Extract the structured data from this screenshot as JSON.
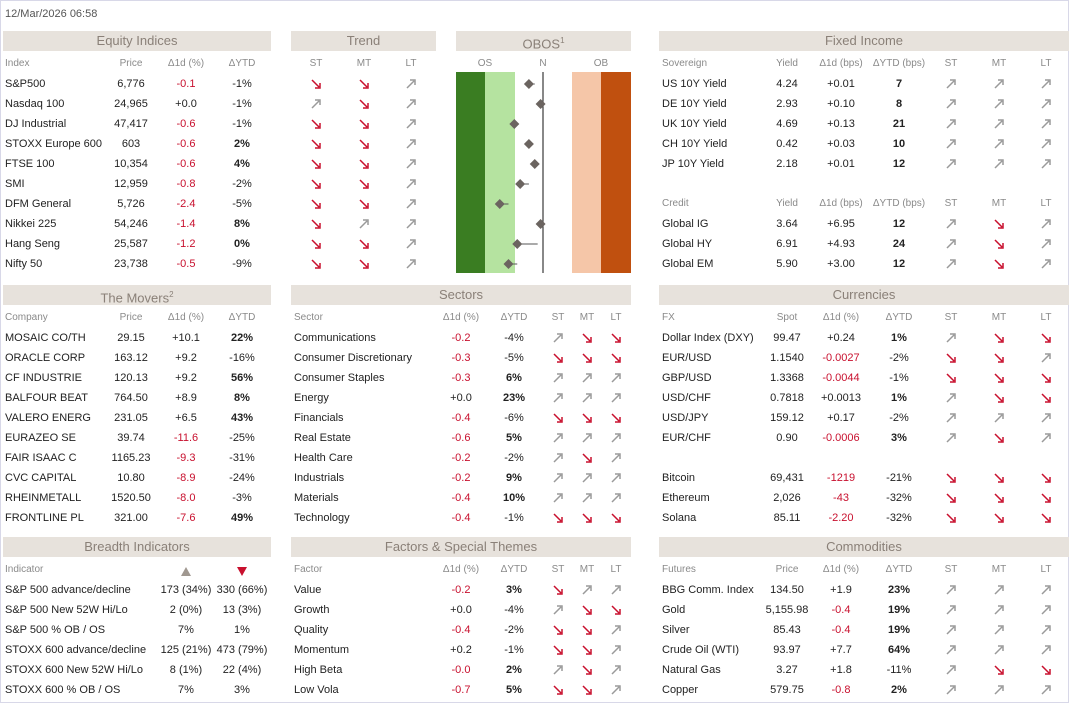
{
  "timestamp": "12/Mar/2026 06:58",
  "equity": {
    "title": "Equity Indices",
    "columns": [
      "Index",
      "Price",
      "Δ1d (%)",
      "ΔYTD"
    ],
    "rows": [
      [
        "S&P500",
        "6,776",
        "-0.1",
        "-1%"
      ],
      [
        "Nasdaq 100",
        "24,965",
        "+0.0",
        "-1%"
      ],
      [
        "DJ Industrial",
        "47,417",
        "-0.6",
        "-1%"
      ],
      [
        "STOXX Europe 600",
        "603",
        "-0.6",
        "2%"
      ],
      [
        "FTSE 100",
        "10,354",
        "-0.6",
        "4%"
      ],
      [
        "SMI",
        "12,959",
        "-0.8",
        "-2%"
      ],
      [
        "DFM General",
        "5,726",
        "-2.4",
        "-5%"
      ],
      [
        "Nikkei 225",
        "54,246",
        "-1.4",
        "8%"
      ],
      [
        "Hang Seng",
        "25,587",
        "-1.2",
        "0%"
      ],
      [
        "Nifty 50",
        "23,738",
        "-0.5",
        "-9%"
      ]
    ]
  },
  "trend": {
    "title": "Trend",
    "columns": [
      "ST",
      "MT",
      "LT"
    ],
    "trends": [
      [
        "down",
        "down",
        "up"
      ],
      [
        "up",
        "down",
        "up"
      ],
      [
        "down",
        "down",
        "up"
      ],
      [
        "down",
        "down",
        "up"
      ],
      [
        "down",
        "down",
        "up"
      ],
      [
        "down",
        "down",
        "up"
      ],
      [
        "down",
        "down",
        "up"
      ],
      [
        "down",
        "up",
        "up"
      ],
      [
        "down",
        "down",
        "up"
      ],
      [
        "down",
        "down",
        "up"
      ]
    ]
  },
  "obos": {
    "title": "OBOS",
    "note": "1",
    "labels": [
      "OS",
      "N",
      "OB"
    ],
    "xlim": [
      -3,
      3
    ],
    "values": [
      -0.5,
      -0.1,
      -1.0,
      -0.5,
      -0.3,
      -0.8,
      -1.5,
      -0.1,
      -0.9,
      -1.2
    ],
    "previous": [
      -0.3,
      -0.1,
      -1.0,
      -0.5,
      -0.3,
      -0.5,
      -1.2,
      -0.1,
      -0.2,
      -0.9
    ]
  },
  "fixed_income": {
    "title": "Fixed Income",
    "sovereign": {
      "columns": [
        "Sovereign",
        "Yield",
        "Δ1d (bps)",
        "ΔYTD (bps)",
        "ST",
        "MT",
        "LT"
      ],
      "rows": [
        [
          "US 10Y Yield",
          "4.24",
          "+0.01",
          "7"
        ],
        [
          "DE 10Y Yield",
          "2.93",
          "+0.10",
          "8"
        ],
        [
          "UK 10Y Yield",
          "4.69",
          "+0.13",
          "21"
        ],
        [
          "CH 10Y Yield",
          "0.42",
          "+0.03",
          "10"
        ],
        [
          "JP 10Y Yield",
          "2.18",
          "+0.01",
          "12"
        ]
      ],
      "trends": [
        [
          "up",
          "up",
          "up"
        ],
        [
          "up",
          "up",
          "up"
        ],
        [
          "up",
          "up",
          "up"
        ],
        [
          "up",
          "up",
          "up"
        ],
        [
          "up",
          "up",
          "up"
        ]
      ]
    },
    "credit": {
      "columns": [
        "Credit",
        "Yield",
        "Δ1d (bps)",
        "ΔYTD (bps)",
        "ST",
        "MT",
        "LT"
      ],
      "rows": [
        [
          "Global IG",
          "3.64",
          "+6.95",
          "12"
        ],
        [
          "Global HY",
          "6.91",
          "+4.93",
          "24"
        ],
        [
          "Global EM",
          "5.90",
          "+3.00",
          "12"
        ]
      ],
      "trends": [
        [
          "up",
          "down",
          "up"
        ],
        [
          "up",
          "down",
          "up"
        ],
        [
          "up",
          "down",
          "up"
        ]
      ]
    }
  },
  "movers": {
    "title": "The Movers",
    "note": "2",
    "columns": [
      "Company",
      "Price",
      "Δ1d (%)",
      "ΔYTD"
    ],
    "rows": [
      [
        "MOSAIC CO/TH",
        "29.15",
        "+10.1",
        "22%"
      ],
      [
        "ORACLE CORP",
        "163.12",
        "+9.2",
        "-16%"
      ],
      [
        "CF INDUSTRIE",
        "120.13",
        "+9.2",
        "56%"
      ],
      [
        "BALFOUR BEAT",
        "764.50",
        "+8.9",
        "8%"
      ],
      [
        "VALERO ENERG",
        "231.05",
        "+6.5",
        "43%"
      ],
      [
        "EURAZEO SE",
        "39.74",
        "-11.6",
        "-25%"
      ],
      [
        "FAIR ISAAC C",
        "1165.23",
        "-9.3",
        "-31%"
      ],
      [
        "CVC CAPITAL",
        "10.80",
        "-8.9",
        "-24%"
      ],
      [
        "RHEINMETALL",
        "1520.50",
        "-8.0",
        "-3%"
      ],
      [
        "FRONTLINE PL",
        "321.00",
        "-7.6",
        "49%"
      ]
    ]
  },
  "sectors": {
    "title": "Sectors",
    "columns": [
      "Sector",
      "Δ1d (%)",
      "ΔYTD",
      "ST",
      "MT",
      "LT"
    ],
    "rows": [
      [
        "Communications",
        "-0.2",
        "-4%"
      ],
      [
        "Consumer Discretionary",
        "-0.3",
        "-5%"
      ],
      [
        "Consumer Staples",
        "-0.3",
        "6%"
      ],
      [
        "Energy",
        "+0.0",
        "23%"
      ],
      [
        "Financials",
        "-0.4",
        "-6%"
      ],
      [
        "Real Estate",
        "-0.6",
        "5%"
      ],
      [
        "Health Care",
        "-0.2",
        "-2%"
      ],
      [
        "Industrials",
        "-0.2",
        "9%"
      ],
      [
        "Materials",
        "-0.4",
        "10%"
      ],
      [
        "Technology",
        "-0.4",
        "-1%"
      ]
    ],
    "trends": [
      [
        "up",
        "down",
        "down"
      ],
      [
        "down",
        "down",
        "down"
      ],
      [
        "up",
        "up",
        "up"
      ],
      [
        "up",
        "up",
        "up"
      ],
      [
        "down",
        "down",
        "down"
      ],
      [
        "up",
        "up",
        "up"
      ],
      [
        "up",
        "down",
        "up"
      ],
      [
        "up",
        "up",
        "up"
      ],
      [
        "up",
        "up",
        "up"
      ],
      [
        "down",
        "down",
        "down"
      ]
    ]
  },
  "currencies": {
    "title": "Currencies",
    "columns": [
      "FX",
      "Spot",
      "Δ1d (%)",
      "ΔYTD",
      "ST",
      "MT",
      "LT"
    ],
    "rows": [
      [
        "Dollar Index (DXY)",
        "99.47",
        "+0.24",
        "1%"
      ],
      [
        "EUR/USD",
        "1.1540",
        "-0.0027",
        "-2%"
      ],
      [
        "GBP/USD",
        "1.3368",
        "-0.0044",
        "-1%"
      ],
      [
        "USD/CHF",
        "0.7818",
        "+0.0013",
        "1%"
      ],
      [
        "USD/JPY",
        "159.12",
        "+0.17",
        "-2%"
      ],
      [
        "EUR/CHF",
        "0.90",
        "-0.0006",
        "3%"
      ]
    ],
    "trends": [
      [
        "up",
        "down",
        "down"
      ],
      [
        "down",
        "down",
        "up"
      ],
      [
        "down",
        "down",
        "down"
      ],
      [
        "up",
        "down",
        "down"
      ],
      [
        "up",
        "up",
        "up"
      ],
      [
        "up",
        "down",
        "up"
      ]
    ],
    "crypto": {
      "rows": [
        [
          "Bitcoin",
          "69,431",
          "-1219",
          "-21%"
        ],
        [
          "Ethereum",
          "2,026",
          "-43",
          "-32%"
        ],
        [
          "Solana",
          "85.11",
          "-2.20",
          "-32%"
        ]
      ],
      "trends": [
        [
          "down",
          "down",
          "down"
        ],
        [
          "down",
          "down",
          "down"
        ],
        [
          "down",
          "down",
          "down"
        ]
      ]
    }
  },
  "breadth": {
    "title": "Breadth Indicators",
    "columns": [
      "Indicator"
    ],
    "rows": [
      [
        "S&P 500 advance/decline",
        "173 (34%)",
        "330 (66%)"
      ],
      [
        "S&P 500 New 52W Hi/Lo",
        "2 (0%)",
        "13 (3%)"
      ],
      [
        "S&P 500 % OB / OS",
        "7%",
        "1%"
      ],
      [
        "STOXX 600 advance/decline",
        "125 (21%)",
        "473 (79%)"
      ],
      [
        "STOXX 600 New 52W Hi/Lo",
        "8 (1%)",
        "22 (4%)"
      ],
      [
        "STOXX 600 % OB / OS",
        "7%",
        "3%"
      ]
    ]
  },
  "factors": {
    "title": "Factors & Special Themes",
    "columns": [
      "Factor",
      "Δ1d (%)",
      "ΔYTD",
      "ST",
      "MT",
      "LT"
    ],
    "rows": [
      [
        "Value",
        "-0.2",
        "3%"
      ],
      [
        "Growth",
        "+0.0",
        "-4%"
      ],
      [
        "Quality",
        "-0.4",
        "-2%"
      ],
      [
        "Momentum",
        "+0.2",
        "-1%"
      ],
      [
        "High Beta",
        "-0.0",
        "2%"
      ],
      [
        "Low Vola",
        "-0.7",
        "5%"
      ]
    ],
    "trends": [
      [
        "down",
        "up",
        "up"
      ],
      [
        "up",
        "down",
        "down"
      ],
      [
        "down",
        "down",
        "up"
      ],
      [
        "down",
        "down",
        "up"
      ],
      [
        "up",
        "down",
        "up"
      ],
      [
        "down",
        "down",
        "up"
      ]
    ]
  },
  "commodities": {
    "title": "Commodities",
    "columns": [
      "Futures",
      "Price",
      "Δ1d (%)",
      "ΔYTD",
      "ST",
      "MT",
      "LT"
    ],
    "rows": [
      [
        "BBG Comm. Index",
        "134.50",
        "+1.9",
        "23%"
      ],
      [
        "Gold",
        "5,155.98",
        "-0.4",
        "19%"
      ],
      [
        "Silver",
        "85.43",
        "-0.4",
        "19%"
      ],
      [
        "Crude Oil (WTI)",
        "93.97",
        "+7.7",
        "64%"
      ],
      [
        "Natural Gas",
        "3.27",
        "+1.8",
        "-11%"
      ],
      [
        "Copper",
        "579.75",
        "-0.8",
        "2%"
      ]
    ],
    "trends": [
      [
        "up",
        "up",
        "up"
      ],
      [
        "up",
        "up",
        "up"
      ],
      [
        "up",
        "up",
        "up"
      ],
      [
        "up",
        "up",
        "up"
      ],
      [
        "up",
        "down",
        "down"
      ],
      [
        "up",
        "up",
        "up"
      ]
    ]
  }
}
